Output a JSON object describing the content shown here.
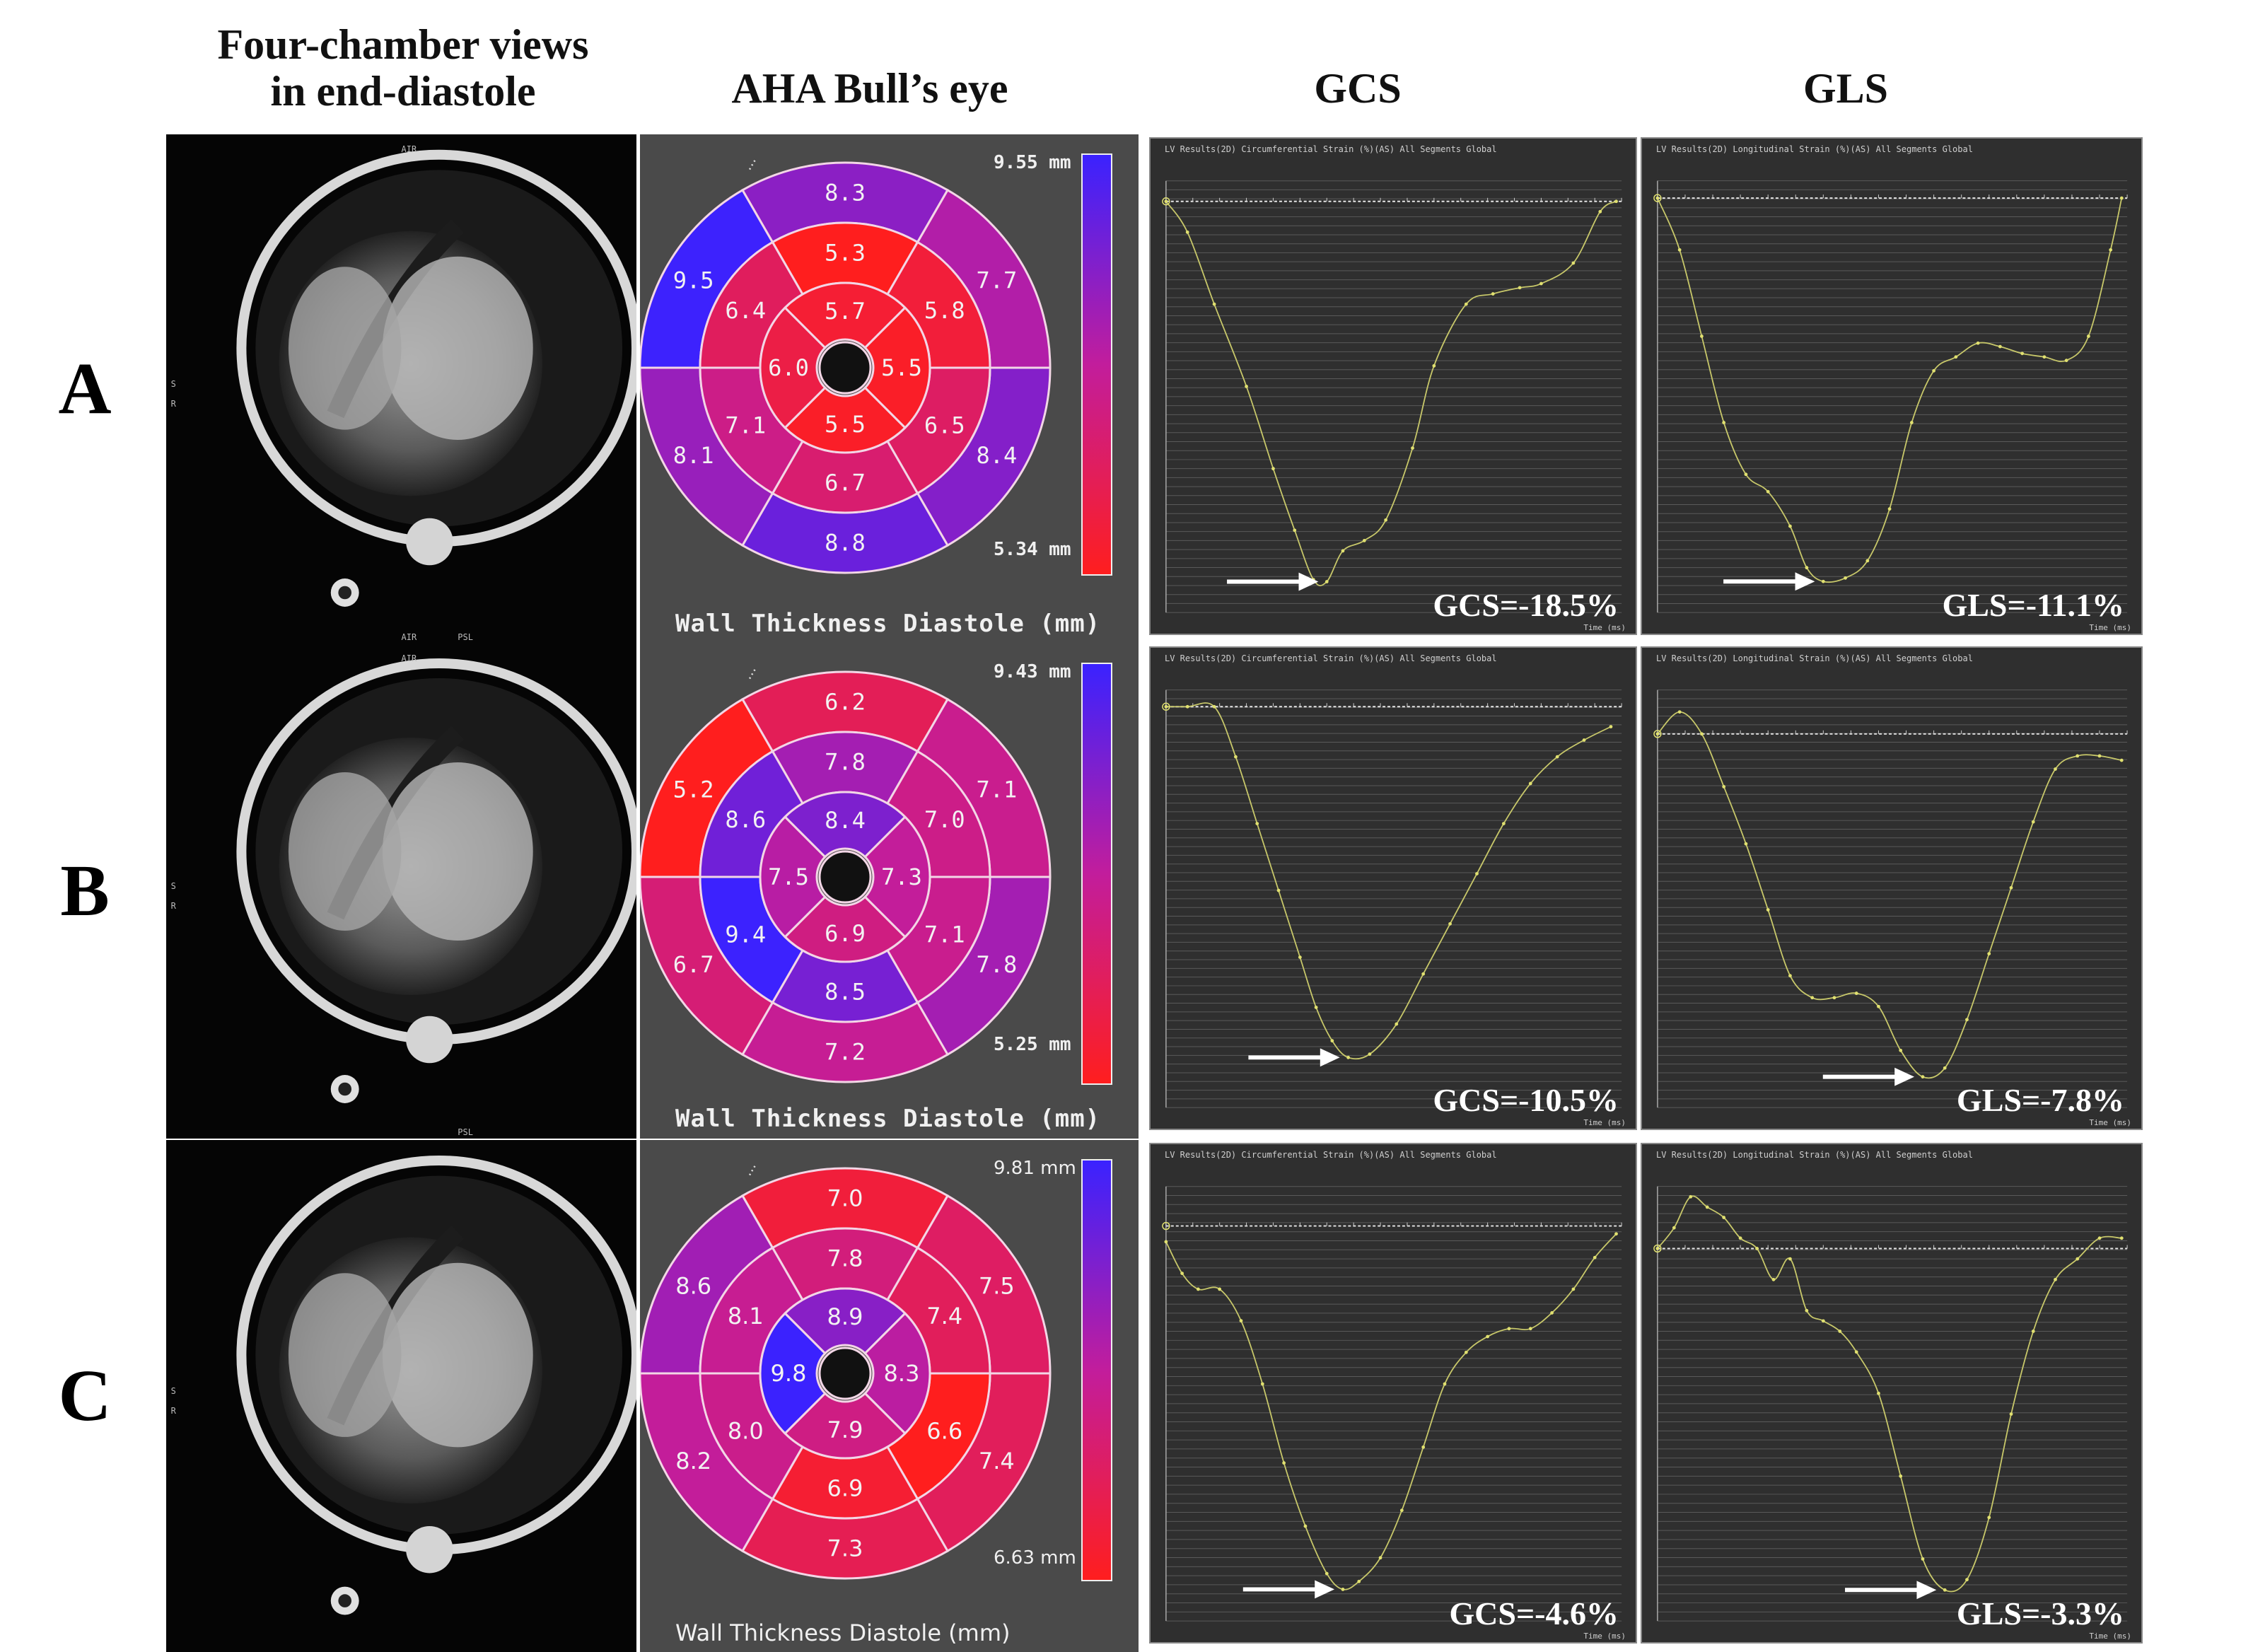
{
  "headers": {
    "col1_line1": "Four-chamber views",
    "col1_line2": "in end-diastole",
    "col2": "AHA Bull’s eye",
    "col3": "GCS",
    "col4": "GLS"
  },
  "rows": [
    {
      "label": "A",
      "mri_labels": [
        "S",
        "R",
        "AIR",
        "PSL",
        "AIR"
      ],
      "bull": {
        "segments": [
          8.3,
          7.7,
          8.4,
          8.8,
          8.1,
          9.5,
          5.3,
          5.8,
          6.5,
          6.7,
          7.1,
          6.4,
          5.7,
          5.5,
          5.5,
          6.0
        ],
        "max_label": "9.55 mm",
        "min_label": "5.34 mm",
        "caption": "Wall Thickness Diastole (mm)",
        "font": "mono",
        "range": [
          5.34,
          9.55
        ]
      },
      "gcs": {
        "title": "LV Results(2D) Circumferential Strain (%)(AS) All Segments Global",
        "value_text": "GCS=-18.5%",
        "time_unit": "Time (ms)",
        "chart_data": {
          "type": "line",
          "xlabel": "Time (ms)",
          "xlim": [
            0,
            850
          ],
          "ylim": [
            -20,
            1
          ],
          "x": [
            0,
            40,
            90,
            150,
            200,
            240,
            275,
            300,
            330,
            370,
            410,
            460,
            500,
            560,
            610,
            660,
            700,
            760,
            810,
            840
          ],
          "y": [
            0,
            -1.5,
            -5,
            -9,
            -13,
            -16,
            -18.4,
            -18.5,
            -17,
            -16.5,
            -15.5,
            -12,
            -8,
            -5,
            -4.5,
            -4.2,
            -4,
            -3,
            -0.5,
            0
          ]
        }
      },
      "gls": {
        "title": "LV Results(2D) Longitudinal Strain (%)(AS) All Segments Global",
        "value_text": "GLS=-11.1%",
        "time_unit": "Time (ms)",
        "chart_data": {
          "type": "line",
          "xlabel": "Time (ms)",
          "xlim": [
            0,
            850
          ],
          "ylim": [
            -12,
            0.5
          ],
          "x": [
            0,
            40,
            80,
            120,
            160,
            200,
            240,
            270,
            300,
            340,
            380,
            420,
            460,
            500,
            540,
            580,
            620,
            660,
            700,
            740,
            780,
            820,
            840
          ],
          "y": [
            0,
            -1.5,
            -4,
            -6.5,
            -8,
            -8.5,
            -9.5,
            -10.7,
            -11.1,
            -11,
            -10.5,
            -9,
            -6.5,
            -5,
            -4.6,
            -4.2,
            -4.3,
            -4.5,
            -4.6,
            -4.7,
            -4,
            -1.5,
            0
          ]
        }
      }
    },
    {
      "label": "B",
      "mri_labels": [
        "S",
        "R",
        "AIR",
        "PSL"
      ],
      "bull": {
        "segments": [
          6.2,
          7.1,
          7.8,
          7.2,
          6.7,
          5.2,
          7.8,
          7.0,
          7.1,
          8.5,
          9.4,
          8.6,
          8.4,
          7.3,
          6.9,
          7.5
        ],
        "max_label": "9.43 mm",
        "min_label": "5.25 mm",
        "caption": "Wall Thickness Diastole (mm)",
        "font": "mono",
        "range": [
          5.25,
          9.43
        ]
      },
      "gcs": {
        "title": "LV Results(2D) Circumferential Strain (%)(AS) All Segments Global",
        "value_text": "GCS=-10.5%",
        "time_unit": "Time (ms)",
        "chart_data": {
          "type": "line",
          "xlabel": "Time (ms)",
          "xlim": [
            0,
            850
          ],
          "ylim": [
            -12,
            0.5
          ],
          "x": [
            0,
            40,
            90,
            130,
            170,
            210,
            250,
            280,
            310,
            340,
            380,
            430,
            480,
            530,
            580,
            630,
            680,
            730,
            780,
            830
          ],
          "y": [
            0,
            0,
            0,
            -1.5,
            -3.5,
            -5.5,
            -7.5,
            -9,
            -10,
            -10.5,
            -10.4,
            -9.5,
            -8,
            -6.5,
            -5,
            -3.5,
            -2.3,
            -1.5,
            -1,
            -0.6
          ]
        }
      },
      "gls": {
        "title": "LV Results(2D) Longitudinal Strain (%)(AS) All Segments Global",
        "value_text": "GLS=-7.8%",
        "time_unit": "Time (ms)",
        "chart_data": {
          "type": "line",
          "xlabel": "Time (ms)",
          "xlim": [
            0,
            850
          ],
          "ylim": [
            -8.5,
            1
          ],
          "x": [
            0,
            40,
            80,
            120,
            160,
            200,
            240,
            280,
            320,
            360,
            400,
            440,
            480,
            520,
            560,
            600,
            640,
            680,
            720,
            760,
            800,
            840
          ],
          "y": [
            0,
            0.5,
            0,
            -1.2,
            -2.5,
            -4,
            -5.5,
            -6,
            -6,
            -5.9,
            -6.2,
            -7.2,
            -7.8,
            -7.6,
            -6.5,
            -5,
            -3.5,
            -2,
            -0.8,
            -0.5,
            -0.5,
            -0.6
          ]
        }
      }
    },
    {
      "label": "C",
      "mri_labels": [
        "S",
        "R"
      ],
      "bull": {
        "segments": [
          7.0,
          7.5,
          7.4,
          7.3,
          8.2,
          8.6,
          7.8,
          7.4,
          6.6,
          6.9,
          8.0,
          8.1,
          8.9,
          8.3,
          7.9,
          9.8
        ],
        "max_label": "9.81 mm",
        "min_label": "6.63 mm",
        "caption": "Wall Thickness Diastole (mm)",
        "font": "sans",
        "range": [
          6.63,
          9.81
        ]
      },
      "gcs": {
        "title": "LV Results(2D) Circumferential Strain (%)(AS) All Segments Global",
        "value_text": "GCS=-4.6%",
        "time_unit": "Time (ms)",
        "chart_data": {
          "type": "line",
          "xlabel": "Time (ms)",
          "xlim": [
            0,
            850
          ],
          "ylim": [
            -5,
            0.5
          ],
          "x": [
            0,
            30,
            60,
            100,
            140,
            180,
            220,
            260,
            300,
            330,
            360,
            400,
            440,
            480,
            520,
            560,
            600,
            640,
            680,
            720,
            760,
            800,
            840
          ],
          "y": [
            -0.2,
            -0.6,
            -0.8,
            -0.8,
            -1.2,
            -2,
            -3,
            -3.8,
            -4.4,
            -4.6,
            -4.5,
            -4.2,
            -3.6,
            -2.8,
            -2,
            -1.6,
            -1.4,
            -1.3,
            -1.3,
            -1.1,
            -0.8,
            -0.4,
            -0.1
          ]
        }
      },
      "gls": {
        "title": "LV Results(2D) Longitudinal Strain (%)(AS) All Segments Global",
        "value_text": "GLS=-3.3%",
        "time_unit": "Time (ms)",
        "chart_data": {
          "type": "line",
          "xlabel": "Time (ms)",
          "xlim": [
            0,
            850
          ],
          "ylim": [
            -3.6,
            0.6
          ],
          "x": [
            0,
            30,
            60,
            90,
            120,
            150,
            180,
            210,
            240,
            270,
            300,
            330,
            360,
            400,
            440,
            480,
            520,
            560,
            600,
            640,
            680,
            720,
            760,
            800,
            840
          ],
          "y": [
            0,
            0.2,
            0.5,
            0.4,
            0.3,
            0.1,
            0,
            -0.3,
            -0.1,
            -0.6,
            -0.7,
            -0.8,
            -1,
            -1.4,
            -2.2,
            -3,
            -3.3,
            -3.2,
            -2.6,
            -1.6,
            -0.8,
            -0.3,
            -0.1,
            0.1,
            0.1
          ]
        }
      }
    }
  ],
  "colors": {
    "low": "#ff1e1e",
    "mid": "#c21d9c",
    "high": "#3a22ff",
    "curve": "#c8c86a"
  }
}
